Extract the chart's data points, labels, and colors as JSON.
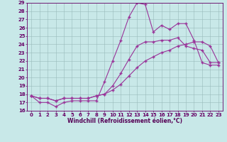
{
  "xlabel": "Windchill (Refroidissement éolien,°C)",
  "background_color": "#c8e8e8",
  "line_color": "#993399",
  "grid_color": "#99bbbb",
  "xlim": [
    -0.5,
    23.5
  ],
  "ylim": [
    16,
    29
  ],
  "x_ticks": [
    0,
    1,
    2,
    3,
    4,
    5,
    6,
    7,
    8,
    9,
    10,
    11,
    12,
    13,
    14,
    15,
    16,
    17,
    18,
    19,
    20,
    21,
    22,
    23
  ],
  "y_ticks": [
    16,
    17,
    18,
    19,
    20,
    21,
    22,
    23,
    24,
    25,
    26,
    27,
    28,
    29
  ],
  "line1_x": [
    0,
    1,
    2,
    3,
    4,
    5,
    6,
    7,
    8,
    9,
    10,
    11,
    12,
    13,
    14,
    15,
    16,
    17,
    18,
    19,
    20,
    21,
    22,
    23
  ],
  "line1_y": [
    17.8,
    17.0,
    17.0,
    16.5,
    17.0,
    17.2,
    17.2,
    17.2,
    17.2,
    19.5,
    22.0,
    24.5,
    27.3,
    29.0,
    28.8,
    25.5,
    26.3,
    25.8,
    26.5,
    26.5,
    24.5,
    21.8,
    21.5,
    21.5
  ],
  "line2_x": [
    0,
    1,
    2,
    3,
    4,
    5,
    6,
    7,
    8,
    9,
    10,
    11,
    12,
    13,
    14,
    15,
    16,
    17,
    18,
    19,
    20,
    21,
    22,
    23
  ],
  "line2_y": [
    17.8,
    17.5,
    17.5,
    17.2,
    17.5,
    17.5,
    17.5,
    17.5,
    17.8,
    18.0,
    19.0,
    20.5,
    22.2,
    23.8,
    24.3,
    24.3,
    24.5,
    24.5,
    24.8,
    23.8,
    23.5,
    23.3,
    21.8,
    21.8
  ],
  "line3_x": [
    0,
    1,
    2,
    3,
    4,
    5,
    6,
    7,
    8,
    9,
    10,
    11,
    12,
    13,
    14,
    15,
    16,
    17,
    18,
    19,
    20,
    21,
    22,
    23
  ],
  "line3_y": [
    17.8,
    17.5,
    17.5,
    17.2,
    17.5,
    17.5,
    17.5,
    17.5,
    17.8,
    18.0,
    18.5,
    19.2,
    20.2,
    21.2,
    22.0,
    22.5,
    23.0,
    23.3,
    23.8,
    24.0,
    24.3,
    24.3,
    23.8,
    21.8
  ],
  "tick_fontsize": 5,
  "label_fontsize": 5.5
}
